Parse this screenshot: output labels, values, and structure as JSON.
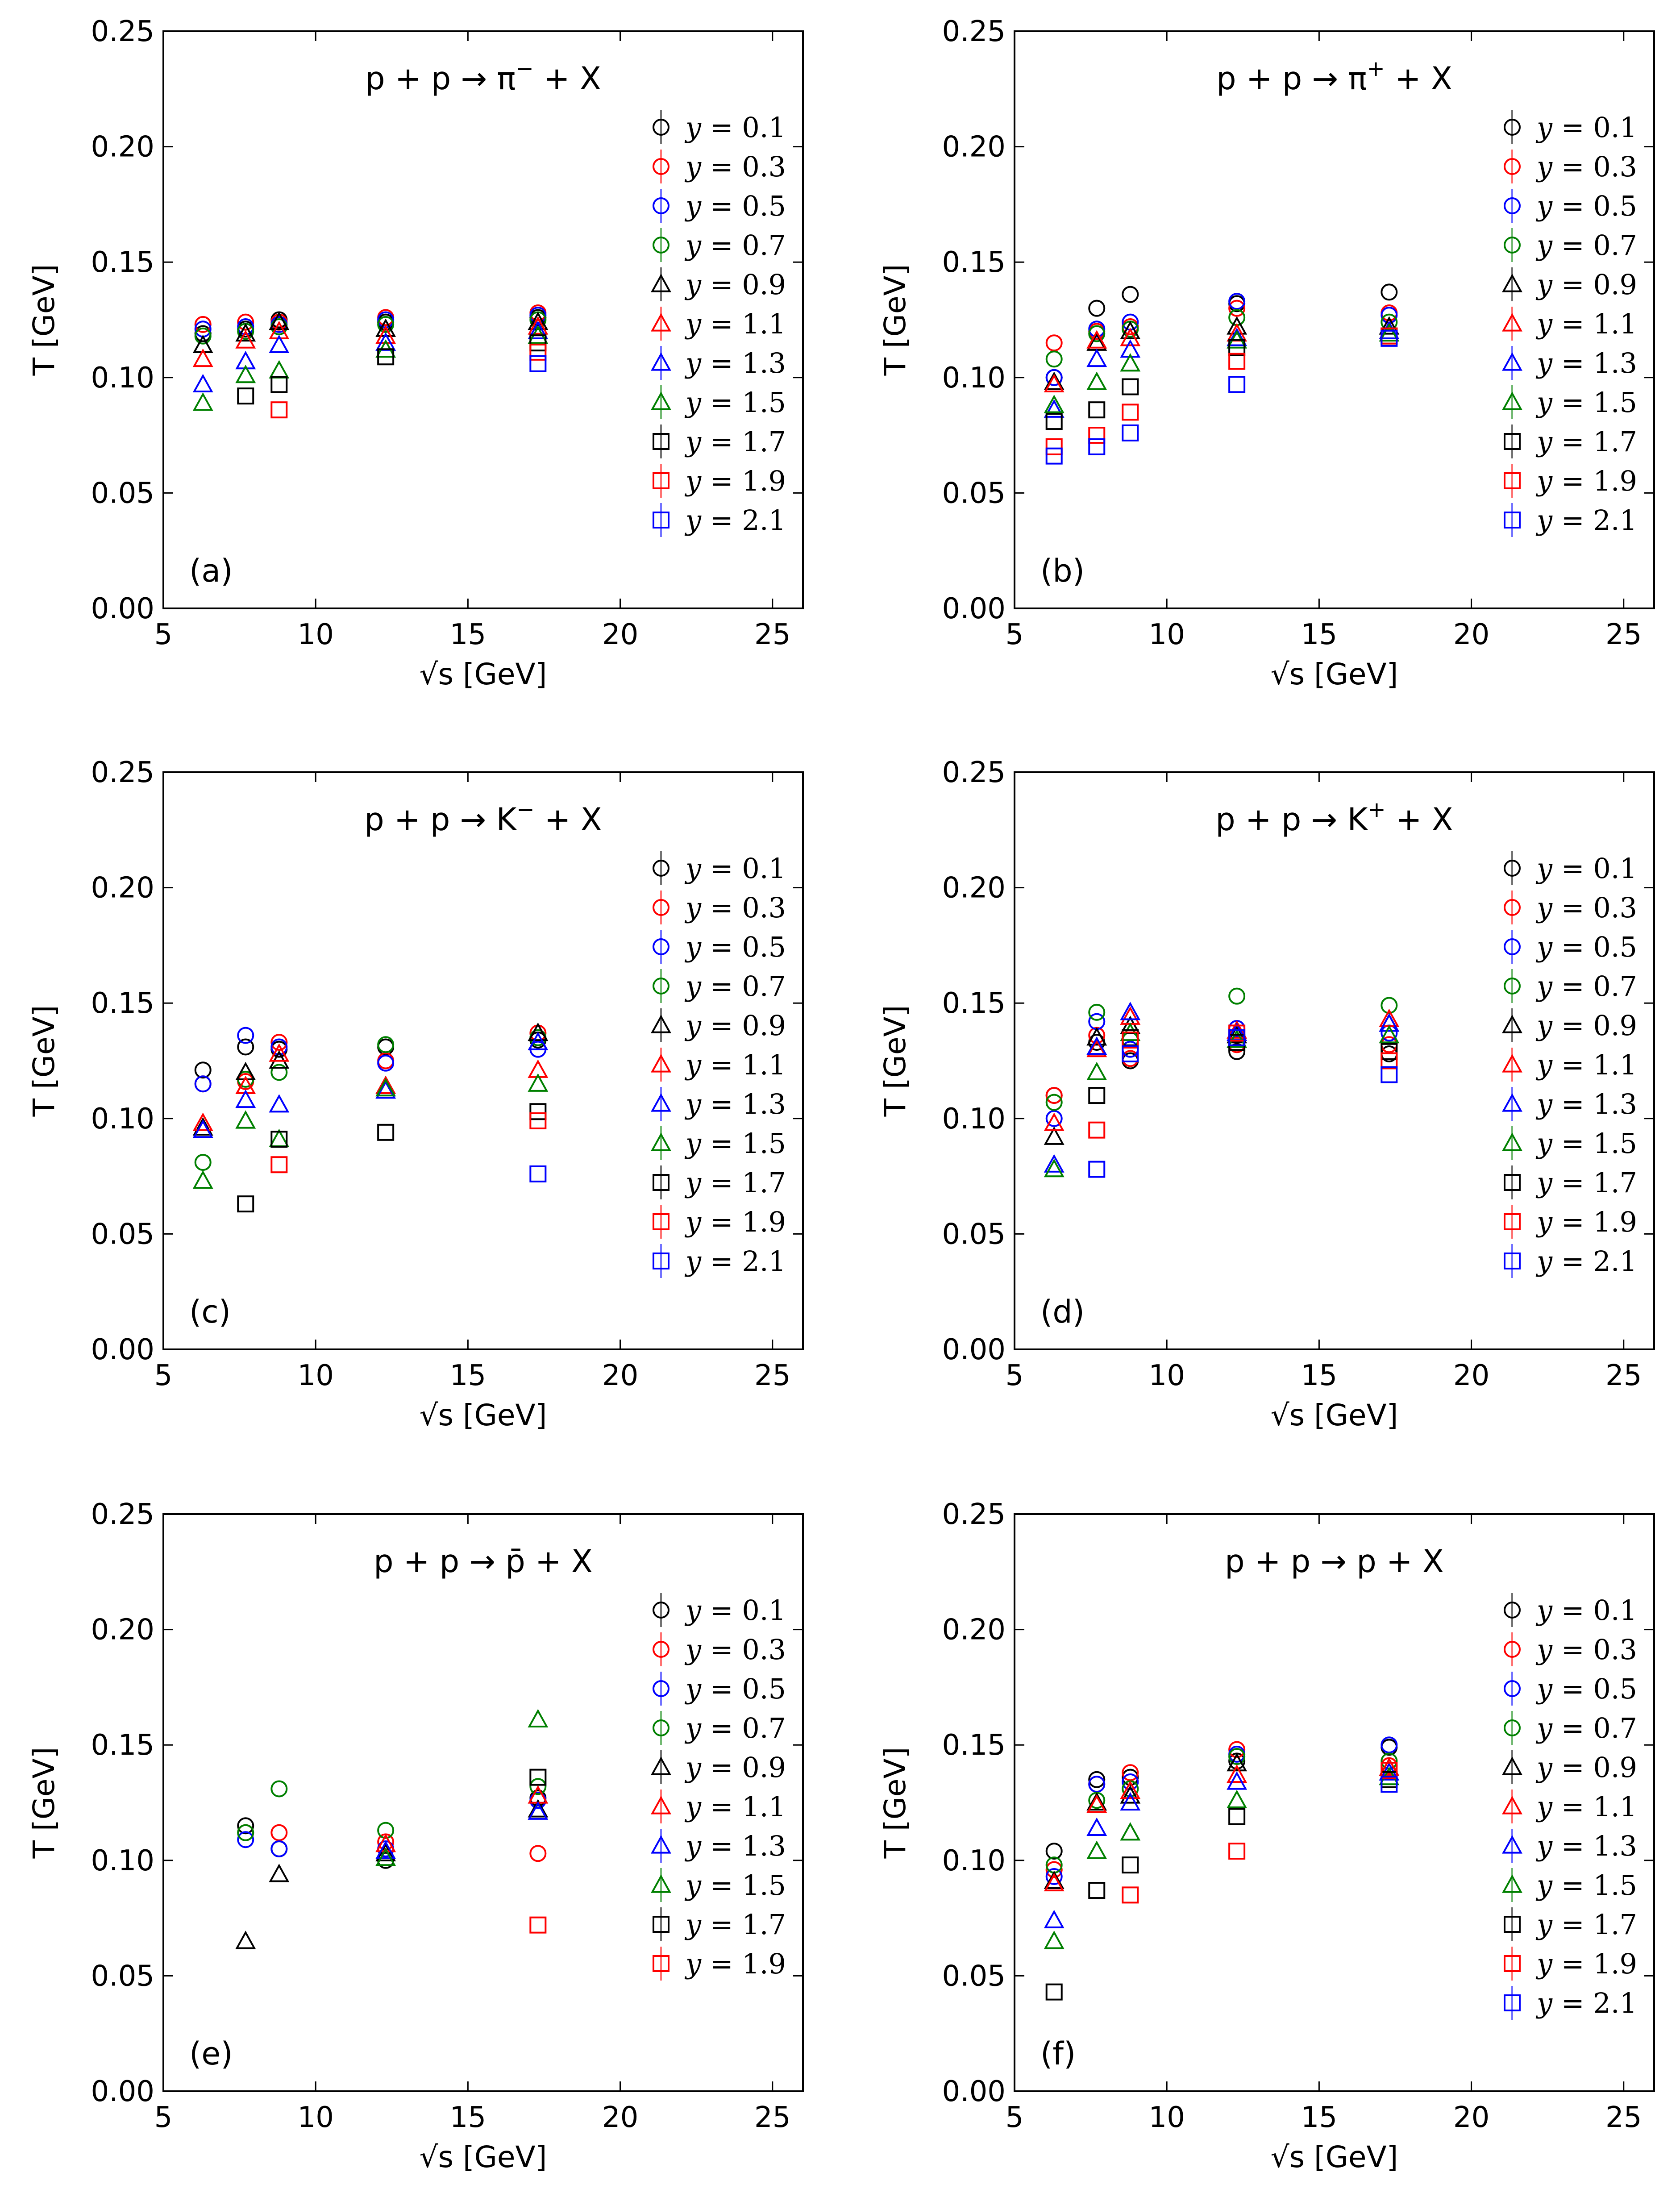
{
  "figure": {
    "xlabel": "√s [GeV]",
    "ylabel": "T [GeV]"
  },
  "legend_y_values": [
    "0.1",
    "0.3",
    "0.5",
    "0.7",
    "0.9",
    "1.1",
    "1.3",
    "1.5",
    "1.7",
    "1.9",
    "2.1"
  ],
  "series_style": {
    "y=0.1": {
      "marker": "circle",
      "color": "#000000"
    },
    "y=0.3": {
      "marker": "circle",
      "color": "#ff0000"
    },
    "y=0.5": {
      "marker": "circle",
      "color": "#0000ff"
    },
    "y=0.7": {
      "marker": "circle",
      "color": "#008000"
    },
    "y=0.9": {
      "marker": "triangle",
      "color": "#000000"
    },
    "y=1.1": {
      "marker": "triangle",
      "color": "#ff0000"
    },
    "y=1.3": {
      "marker": "triangle",
      "color": "#0000ff"
    },
    "y=1.5": {
      "marker": "triangle",
      "color": "#008000"
    },
    "y=1.7": {
      "marker": "square",
      "color": "#000000"
    },
    "y=1.9": {
      "marker": "square",
      "color": "#ff0000"
    },
    "y=2.1": {
      "marker": "square",
      "color": "#0000ff"
    }
  },
  "chart_data": [
    {
      "type": "scatter",
      "panel_label": "(a)",
      "title": "p + p → π⁻ + X",
      "title_prefix": "p + p → π",
      "title_sup": "−",
      "title_suffix": " + X",
      "xlabel": "√s [GeV]",
      "ylabel": "T [GeV]",
      "xlim": [
        5,
        26
      ],
      "ylim": [
        0,
        0.25
      ],
      "xticks": [
        5,
        10,
        15,
        20,
        25
      ],
      "yticks": [
        "0.00",
        "0.05",
        "0.10",
        "0.15",
        "0.20",
        "0.25"
      ],
      "x": [
        6.3,
        7.7,
        8.8,
        12.3,
        17.3
      ],
      "series": [
        {
          "name": "y=0.1",
          "values": [
            0.119,
            0.121,
            0.125,
            0.124,
            0.126
          ]
        },
        {
          "name": "y=0.3",
          "values": [
            0.123,
            0.124,
            0.124,
            0.126,
            0.128
          ]
        },
        {
          "name": "y=0.5",
          "values": [
            0.121,
            0.122,
            0.123,
            0.125,
            0.127
          ]
        },
        {
          "name": "y=0.7",
          "values": [
            0.118,
            0.12,
            0.122,
            0.123,
            0.125
          ]
        },
        {
          "name": "y=0.9",
          "values": [
            0.114,
            0.119,
            0.124,
            0.121,
            0.124
          ]
        },
        {
          "name": "y=1.1",
          "values": [
            0.108,
            0.116,
            0.12,
            0.118,
            0.122
          ]
        },
        {
          "name": "y=1.3",
          "values": [
            0.097,
            0.107,
            0.114,
            0.115,
            0.12
          ]
        },
        {
          "name": "y=1.5",
          "values": [
            0.089,
            0.101,
            0.103,
            0.112,
            0.118
          ]
        },
        {
          "name": "y=1.7",
          "values": [
            null,
            0.092,
            0.097,
            0.109,
            0.115
          ]
        },
        {
          "name": "y=1.9",
          "values": [
            null,
            null,
            0.086,
            null,
            0.111
          ]
        },
        {
          "name": "y=2.1",
          "values": [
            null,
            null,
            null,
            null,
            0.106
          ]
        }
      ]
    },
    {
      "type": "scatter",
      "panel_label": "(b)",
      "title": "p + p → π⁺ + X",
      "title_prefix": "p + p → π",
      "title_sup": "+",
      "title_suffix": " + X",
      "xlabel": "√s [GeV]",
      "ylabel": "T [GeV]",
      "xlim": [
        5,
        26
      ],
      "ylim": [
        0,
        0.25
      ],
      "xticks": [
        5,
        10,
        15,
        20,
        25
      ],
      "yticks": [
        "0.00",
        "0.05",
        "0.10",
        "0.15",
        "0.20",
        "0.25"
      ],
      "x": [
        6.3,
        7.7,
        8.8,
        12.3,
        17.3
      ],
      "series": [
        {
          "name": "y=0.1",
          "values": [
            0.1,
            0.13,
            0.136,
            0.132,
            0.137
          ]
        },
        {
          "name": "y=0.3",
          "values": [
            0.115,
            0.12,
            0.122,
            0.13,
            0.128
          ]
        },
        {
          "name": "y=0.5",
          "values": [
            0.1,
            0.121,
            0.124,
            0.133,
            0.127
          ]
        },
        {
          "name": "y=0.7",
          "values": [
            0.108,
            0.119,
            0.121,
            0.126,
            0.124
          ]
        },
        {
          "name": "y=0.9",
          "values": [
            0.098,
            0.115,
            0.12,
            0.122,
            0.122
          ]
        },
        {
          "name": "y=1.1",
          "values": [
            0.097,
            0.116,
            0.117,
            0.119,
            0.12
          ]
        },
        {
          "name": "y=1.3",
          "values": [
            0.086,
            0.108,
            0.112,
            0.117,
            0.12
          ]
        },
        {
          "name": "y=1.5",
          "values": [
            0.088,
            0.098,
            0.106,
            0.116,
            0.119
          ]
        },
        {
          "name": "y=1.7",
          "values": [
            0.081,
            0.086,
            0.096,
            0.113,
            0.118
          ]
        },
        {
          "name": "y=1.9",
          "values": [
            0.07,
            0.075,
            0.085,
            0.107,
            0.118
          ]
        },
        {
          "name": "y=2.1",
          "values": [
            0.066,
            0.07,
            0.076,
            0.097,
            0.117
          ]
        }
      ]
    },
    {
      "type": "scatter",
      "panel_label": "(c)",
      "title": "p + p → K⁻ + X",
      "title_prefix": "p + p → K",
      "title_sup": "−",
      "title_suffix": " + X",
      "xlabel": "√s [GeV]",
      "ylabel": "T [GeV]",
      "xlim": [
        5,
        26
      ],
      "ylim": [
        0,
        0.25
      ],
      "xticks": [
        5,
        10,
        15,
        20,
        25
      ],
      "yticks": [
        "0.00",
        "0.05",
        "0.10",
        "0.15",
        "0.20",
        "0.25"
      ],
      "x": [
        6.3,
        7.7,
        8.8,
        12.3,
        17.3
      ],
      "series": [
        {
          "name": "y=0.1",
          "values": [
            0.121,
            0.131,
            0.13,
            0.131,
            0.134
          ]
        },
        {
          "name": "y=0.3",
          "values": [
            0.115,
            0.116,
            0.133,
            0.125,
            0.137
          ]
        },
        {
          "name": "y=0.5",
          "values": [
            0.115,
            0.136,
            0.131,
            0.124,
            0.13
          ]
        },
        {
          "name": "y=0.7",
          "values": [
            0.081,
            0.117,
            0.12,
            0.132,
            0.135
          ]
        },
        {
          "name": "y=0.9",
          "values": [
            0.096,
            0.12,
            0.125,
            0.114,
            0.137
          ]
        },
        {
          "name": "y=1.1",
          "values": [
            0.098,
            0.114,
            0.128,
            0.114,
            0.121
          ]
        },
        {
          "name": "y=1.3",
          "values": [
            0.095,
            0.108,
            0.106,
            0.112,
            0.133
          ]
        },
        {
          "name": "y=1.5",
          "values": [
            0.073,
            0.099,
            0.091,
            0.113,
            0.115
          ]
        },
        {
          "name": "y=1.7",
          "values": [
            null,
            0.063,
            0.091,
            0.094,
            0.103
          ]
        },
        {
          "name": "y=1.9",
          "values": [
            null,
            null,
            0.08,
            null,
            0.099
          ]
        },
        {
          "name": "y=2.1",
          "values": [
            null,
            null,
            null,
            null,
            0.076
          ]
        }
      ]
    },
    {
      "type": "scatter",
      "panel_label": "(d)",
      "title": "p + p → K⁺ + X",
      "title_prefix": "p + p → K",
      "title_sup": "+",
      "title_suffix": " + X",
      "xlabel": "√s [GeV]",
      "ylabel": "T [GeV]",
      "xlim": [
        5,
        26
      ],
      "ylim": [
        0,
        0.25
      ],
      "xticks": [
        5,
        10,
        15,
        20,
        25
      ],
      "yticks": [
        "0.00",
        "0.05",
        "0.10",
        "0.15",
        "0.20",
        "0.25"
      ],
      "x": [
        6.3,
        7.7,
        8.8,
        12.3,
        17.3
      ],
      "series": [
        {
          "name": "y=0.1",
          "values": [
            0.11,
            0.133,
            0.125,
            0.129,
            0.128
          ]
        },
        {
          "name": "y=0.3",
          "values": [
            0.11,
            0.136,
            0.126,
            0.132,
            0.132
          ]
        },
        {
          "name": "y=0.5",
          "values": [
            0.1,
            0.142,
            0.13,
            0.139,
            0.137
          ]
        },
        {
          "name": "y=0.7",
          "values": [
            0.107,
            0.146,
            0.134,
            0.153,
            0.149
          ]
        },
        {
          "name": "y=0.9",
          "values": [
            0.092,
            0.135,
            0.14,
            0.136,
            0.141
          ]
        },
        {
          "name": "y=1.1",
          "values": [
            0.098,
            0.13,
            0.144,
            0.138,
            0.143
          ]
        },
        {
          "name": "y=1.3",
          "values": [
            0.08,
            0.131,
            0.146,
            0.137,
            0.141
          ]
        },
        {
          "name": "y=1.5",
          "values": [
            0.078,
            0.12,
            0.137,
            0.134,
            0.136
          ]
        },
        {
          "name": "y=1.7",
          "values": [
            null,
            0.11,
            0.135,
            0.133,
            0.129
          ]
        },
        {
          "name": "y=1.9",
          "values": [
            null,
            0.095,
            0.134,
            0.137,
            0.125
          ]
        },
        {
          "name": "y=2.1",
          "values": [
            null,
            0.078,
            0.128,
            0.135,
            0.119
          ]
        }
      ]
    },
    {
      "type": "scatter",
      "panel_label": "(e)",
      "title": "p + p → p̄ + X",
      "title_prefix": "p + p → p̄",
      "title_sup": "",
      "title_suffix": " + X",
      "xlabel": "√s [GeV]",
      "ylabel": "T [GeV]",
      "xlim": [
        5,
        26
      ],
      "ylim": [
        0,
        0.25
      ],
      "xticks": [
        5,
        10,
        15,
        20,
        25
      ],
      "yticks": [
        "0.00",
        "0.05",
        "0.10",
        "0.15",
        "0.20",
        "0.25"
      ],
      "x": [
        7.7,
        8.8,
        12.3,
        17.3
      ],
      "series": [
        {
          "name": "y=0.1",
          "values": [
            0.115,
            0.105,
            0.1,
            0.127
          ]
        },
        {
          "name": "y=0.3",
          "values": [
            0.112,
            0.112,
            0.108,
            0.103
          ]
        },
        {
          "name": "y=0.5",
          "values": [
            0.109,
            0.105,
            0.105,
            0.126
          ]
        },
        {
          "name": "y=0.7",
          "values": [
            0.112,
            0.131,
            0.113,
            0.132
          ]
        },
        {
          "name": "y=0.9",
          "values": [
            0.065,
            0.094,
            0.103,
            0.122
          ]
        },
        {
          "name": "y=1.1",
          "values": [
            null,
            null,
            0.107,
            0.128
          ]
        },
        {
          "name": "y=1.3",
          "values": [
            null,
            null,
            0.104,
            0.121
          ]
        },
        {
          "name": "y=1.5",
          "values": [
            null,
            null,
            0.101,
            0.161
          ]
        },
        {
          "name": "y=1.7",
          "values": [
            null,
            null,
            null,
            0.136
          ]
        },
        {
          "name": "y=1.9",
          "values": [
            null,
            null,
            null,
            0.072
          ]
        }
      ]
    },
    {
      "type": "scatter",
      "panel_label": "(f)",
      "title": "p + p → p + X",
      "title_prefix": "p + p → p",
      "title_sup": "",
      "title_suffix": " + X",
      "xlabel": "√s [GeV]",
      "ylabel": "T [GeV]",
      "xlim": [
        5,
        26
      ],
      "ylim": [
        0,
        0.25
      ],
      "xticks": [
        5,
        10,
        15,
        20,
        25
      ],
      "yticks": [
        "0.00",
        "0.05",
        "0.10",
        "0.15",
        "0.20",
        "0.25"
      ],
      "x": [
        6.3,
        7.7,
        8.8,
        12.3,
        17.3
      ],
      "series": [
        {
          "name": "y=0.1",
          "values": [
            0.104,
            0.135,
            0.136,
            0.143,
            0.149
          ]
        },
        {
          "name": "y=0.3",
          "values": [
            0.096,
            0.133,
            0.138,
            0.148,
            0.141
          ]
        },
        {
          "name": "y=0.5",
          "values": [
            0.093,
            0.133,
            0.134,
            0.146,
            0.15
          ]
        },
        {
          "name": "y=0.7",
          "values": [
            0.098,
            0.126,
            0.131,
            0.145,
            0.143
          ]
        },
        {
          "name": "y=0.9",
          "values": [
            0.091,
            0.125,
            0.128,
            0.142,
            0.14
          ]
        },
        {
          "name": "y=1.1",
          "values": [
            0.09,
            0.124,
            0.13,
            0.137,
            0.14
          ]
        },
        {
          "name": "y=1.3",
          "values": [
            0.074,
            0.114,
            0.125,
            0.134,
            0.138
          ]
        },
        {
          "name": "y=1.5",
          "values": [
            0.065,
            0.104,
            0.112,
            0.126,
            0.136
          ]
        },
        {
          "name": "y=1.7",
          "values": [
            0.043,
            0.087,
            0.098,
            0.119,
            0.135
          ]
        },
        {
          "name": "y=1.9",
          "values": [
            null,
            null,
            0.085,
            0.104,
            0.139
          ]
        },
        {
          "name": "y=2.1",
          "values": [
            null,
            null,
            null,
            null,
            0.133
          ]
        }
      ]
    }
  ]
}
